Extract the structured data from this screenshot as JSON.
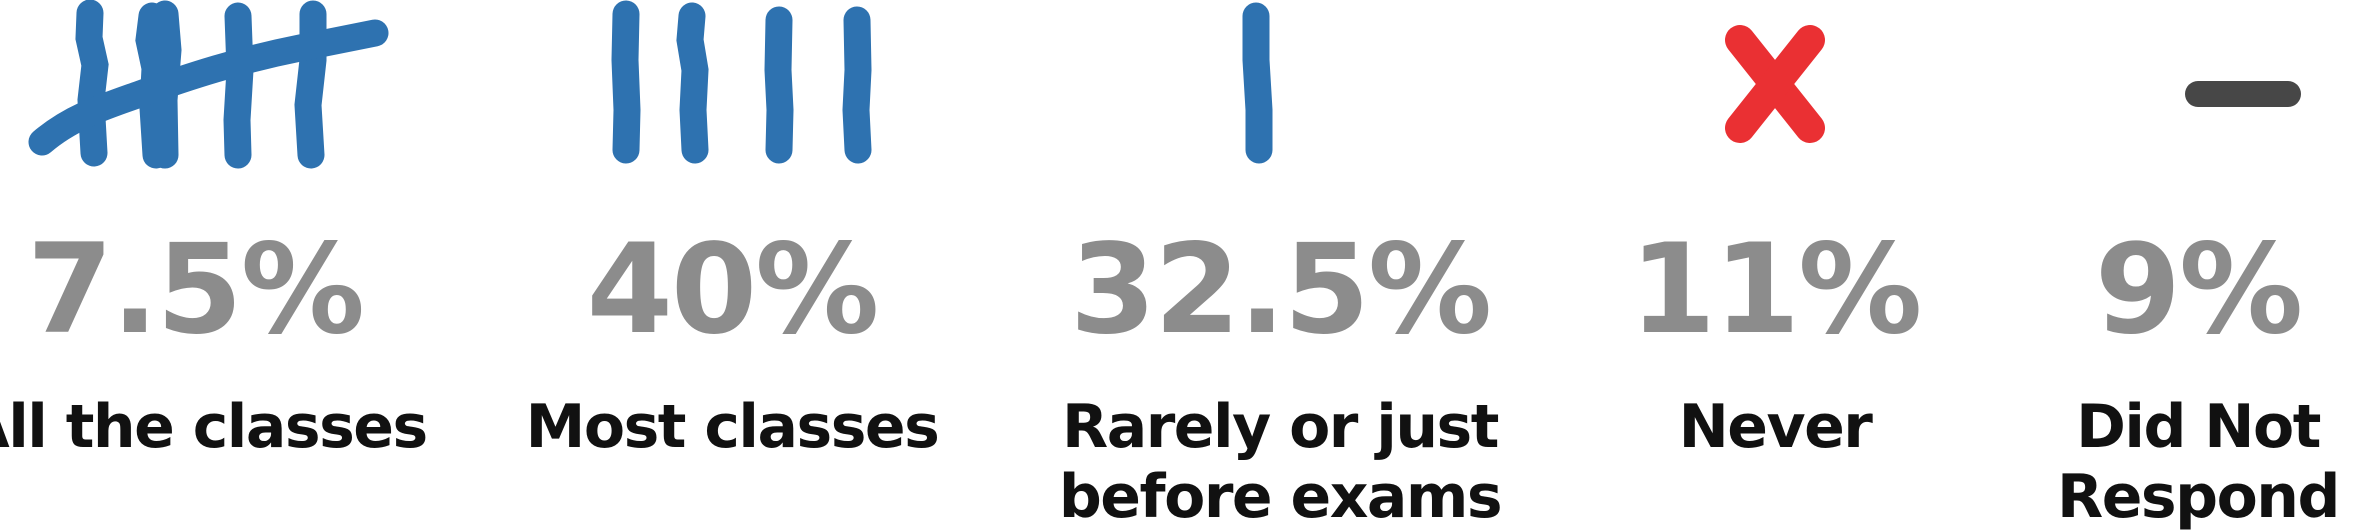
{
  "colors": {
    "tally": "#2e72b0",
    "never": "#ea3033",
    "dash": "#474747",
    "value": "#8c8c8c",
    "label": "#111111"
  },
  "chart_data": {
    "type": "pictograph",
    "unit": "%",
    "categories": [
      "All the classes",
      "Most classes",
      "Rarely or just before exams",
      "Never",
      "Did Not Respond"
    ],
    "values": [
      7.5,
      40,
      32.5,
      11,
      9
    ],
    "items": [
      {
        "icon": "tally-five-icon",
        "tally_marks": 5,
        "value_text": "7.5%",
        "label_lines": [
          "All the classes"
        ]
      },
      {
        "icon": "tally-four-icon",
        "tally_marks": 4,
        "value_text": "40%",
        "label_lines": [
          "Most classes"
        ]
      },
      {
        "icon": "tally-one-icon",
        "tally_marks": 1,
        "value_text": "32.5%",
        "label_lines": [
          "Rarely or just",
          "before exams"
        ]
      },
      {
        "icon": "red-x-icon",
        "tally_marks": 0,
        "value_text": "11%",
        "label_lines": [
          "Never"
        ]
      },
      {
        "icon": "dash-icon",
        "tally_marks": 0,
        "value_text": "9%",
        "label_lines": [
          "Did Not",
          "Respond"
        ]
      }
    ]
  }
}
